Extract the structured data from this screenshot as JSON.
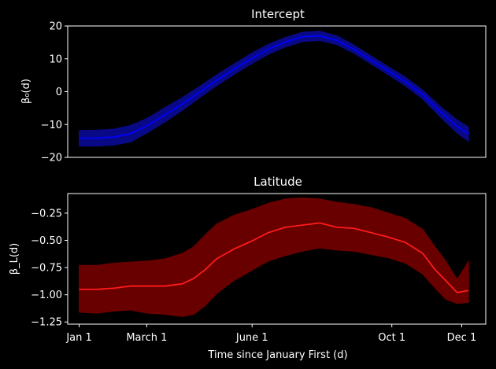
{
  "chart_data": [
    {
      "type": "line",
      "title": "Intercept",
      "ylabel": "β₀(d)",
      "ylim": [
        -20,
        20
      ],
      "yticks": [
        -20,
        -10,
        0,
        10,
        20
      ],
      "ytick_labels": [
        "−20",
        "−10",
        "0",
        "10",
        "20"
      ],
      "xlim": [
        -10,
        355
      ],
      "show_xticks": false,
      "color": "#0000ff",
      "band_color": "#0a0a8c",
      "x": [
        0,
        15,
        30,
        45,
        60,
        75,
        90,
        105,
        120,
        135,
        150,
        165,
        180,
        195,
        210,
        225,
        240,
        255,
        270,
        285,
        300,
        315,
        330,
        340
      ],
      "values": [
        -14.2,
        -14.1,
        -13.8,
        -12.8,
        -10.2,
        -7.0,
        -3.8,
        -0.2,
        3.4,
        6.8,
        10.0,
        12.9,
        15.1,
        16.7,
        17.0,
        15.6,
        12.9,
        9.6,
        6.3,
        3.0,
        -0.9,
        -6.0,
        -10.6,
        -12.9
      ],
      "lower": [
        -16.6,
        -16.6,
        -16.3,
        -15.3,
        -12.4,
        -9.2,
        -5.7,
        -1.9,
        1.8,
        5.2,
        8.4,
        11.3,
        13.6,
        15.2,
        15.6,
        14.3,
        11.7,
        8.4,
        5.1,
        1.7,
        -2.3,
        -7.6,
        -12.6,
        -15.1
      ],
      "upper": [
        -11.8,
        -11.7,
        -11.4,
        -10.3,
        -8.0,
        -4.8,
        -1.8,
        1.6,
        5.1,
        8.4,
        11.6,
        14.4,
        16.5,
        18.1,
        18.4,
        17.0,
        14.2,
        10.9,
        7.6,
        4.4,
        0.5,
        -4.4,
        -8.6,
        -10.8
      ]
    },
    {
      "type": "line",
      "title": "Latitude",
      "ylabel": "β_L(d)",
      "xlabel": "Time since January First (d)",
      "ylim": [
        -1.27,
        -0.07
      ],
      "yticks": [
        -1.25,
        -1.0,
        -0.75,
        -0.5,
        -0.25
      ],
      "ytick_labels": [
        "−1.25",
        "−1.00",
        "−0.75",
        "−0.50",
        "−0.25"
      ],
      "xlim": [
        -10,
        355
      ],
      "xticks": [
        0,
        59,
        151,
        273,
        334
      ],
      "xtick_labels": [
        "Jan 1",
        "March 1",
        "June 1",
        "Oct 1",
        "Dec 1"
      ],
      "color": "#ff1a1a",
      "band_color": "#6e0000",
      "x": [
        0,
        15,
        30,
        45,
        60,
        75,
        90,
        100,
        110,
        120,
        135,
        150,
        165,
        180,
        195,
        210,
        225,
        240,
        255,
        270,
        285,
        300,
        310,
        320,
        330,
        340
      ],
      "values": [
        -0.95,
        -0.95,
        -0.94,
        -0.92,
        -0.92,
        -0.92,
        -0.9,
        -0.85,
        -0.77,
        -0.67,
        -0.58,
        -0.51,
        -0.43,
        -0.38,
        -0.36,
        -0.34,
        -0.38,
        -0.39,
        -0.43,
        -0.47,
        -0.52,
        -0.62,
        -0.76,
        -0.87,
        -0.98,
        -0.96
      ],
      "lower": [
        -1.16,
        -1.17,
        -1.15,
        -1.14,
        -1.17,
        -1.18,
        -1.2,
        -1.18,
        -1.1,
        -0.99,
        -0.87,
        -0.78,
        -0.69,
        -0.64,
        -0.6,
        -0.57,
        -0.59,
        -0.6,
        -0.63,
        -0.66,
        -0.71,
        -0.81,
        -0.93,
        -1.04,
        -1.08,
        -1.07
      ],
      "upper": [
        -0.73,
        -0.73,
        -0.71,
        -0.7,
        -0.69,
        -0.67,
        -0.62,
        -0.56,
        -0.45,
        -0.35,
        -0.27,
        -0.22,
        -0.16,
        -0.12,
        -0.11,
        -0.12,
        -0.15,
        -0.17,
        -0.2,
        -0.25,
        -0.3,
        -0.4,
        -0.55,
        -0.69,
        -0.86,
        -0.69
      ]
    }
  ]
}
